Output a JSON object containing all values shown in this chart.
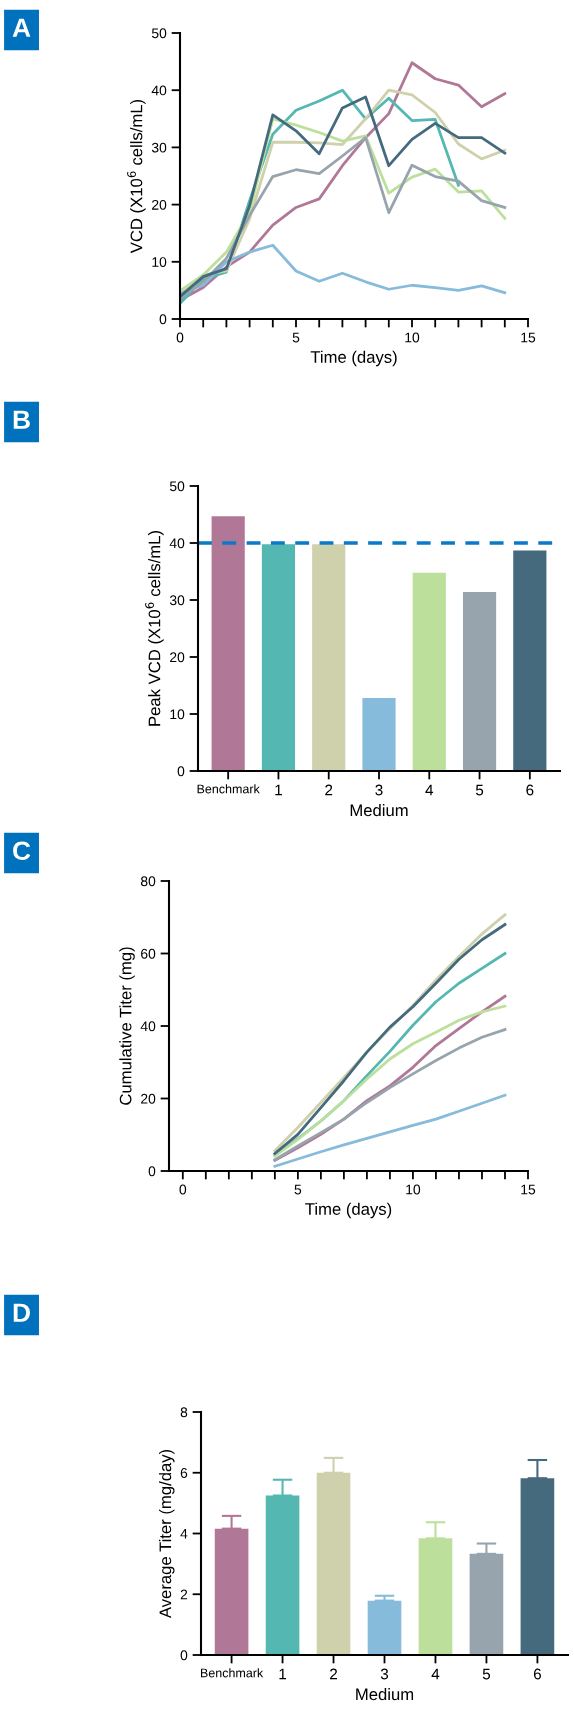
{
  "chart_data": [
    {
      "type": "line",
      "annotations": [
        "A"
      ],
      "xlabel": "Time (days)",
      "ylabel": "VCD (X10$^{6}$ cells/mL)",
      "x": [
        0,
        1,
        2,
        3,
        4,
        5,
        6,
        7,
        8,
        9,
        10,
        11,
        12,
        13,
        14
      ],
      "xlim": [
        0,
        15
      ],
      "ylim": [
        0,
        50
      ],
      "yticks": [
        0,
        10,
        20,
        30,
        40,
        50
      ],
      "xticks": [
        0,
        {
          "value": 1,
          "label": null
        },
        {
          "value": 2,
          "label": null
        },
        {
          "value": 3,
          "label": null
        },
        {
          "value": 4,
          "label": null
        },
        5,
        {
          "value": 6,
          "label": null
        },
        {
          "value": 7,
          "label": null
        },
        {
          "value": 8,
          "label": null
        },
        {
          "value": 9,
          "label": null
        },
        10,
        {
          "value": 11,
          "label": null
        },
        {
          "value": 12,
          "label": null
        },
        {
          "value": 13,
          "label": null
        },
        {
          "value": 14,
          "label": null
        },
        15
      ],
      "grid": false,
      "legend": false,
      "series": [
        {
          "color": "#b07896",
          "values": [
            3.3,
            5.5,
            9.1,
            11.7,
            16.4,
            19.5,
            21,
            26.8,
            31.7,
            35.9,
            44.8,
            42,
            40.9,
            37.1,
            39.4
          ]
        },
        {
          "color": "#55b7b2",
          "values": [
            2.7,
            7,
            8.2,
            20.7,
            32.3,
            36.5,
            38.1,
            40,
            35,
            38.6,
            34.7,
            34.9,
            23.4,
            null,
            null
          ]
        },
        {
          "color": "#cfd0ac",
          "values": [
            4.2,
            7.7,
            8.4,
            17.5,
            30.9,
            30.9,
            30.8,
            30.5,
            35,
            40,
            39.2,
            36.1,
            30.6,
            28,
            29.5
          ]
        },
        {
          "color": "#86bbdb",
          "values": [
            4.5,
            5.9,
            10,
            11.7,
            12.9,
            8.4,
            6.6,
            8,
            6.5,
            5.2,
            5.9,
            5.5,
            5,
            5.8,
            4.6
          ]
        },
        {
          "color": "#bce09c",
          "values": [
            4.9,
            7.7,
            11.7,
            18.7,
            35,
            33.9,
            32.6,
            31.1,
            32,
            22,
            24.8,
            26.2,
            22.2,
            22.4,
            17.6
          ]
        },
        {
          "color": "#97a4ad",
          "values": [
            3.6,
            6.5,
            10.6,
            18.1,
            24.9,
            26.1,
            25.4,
            28.5,
            31.7,
            18.6,
            26.9,
            24.9,
            24.1,
            20.7,
            19.5
          ]
        },
        {
          "color": "#456a7e",
          "values": [
            3.9,
            7.4,
            8.8,
            19.8,
            35.7,
            32.9,
            28.9,
            36.9,
            38.8,
            26.8,
            31.4,
            34.2,
            31.7,
            31.7,
            29
          ]
        }
      ]
    },
    {
      "type": "bar",
      "annotations": [
        "B"
      ],
      "xlabel": "Medium",
      "ylabel": "Peak VCD (X10$^{6}$ cells/mL)",
      "categories": [
        "Benchmark",
        "1",
        "2",
        "3",
        "4",
        "5",
        "6"
      ],
      "values": [
        44.7,
        39.8,
        39.8,
        12.8,
        34.8,
        31.4,
        38.7
      ],
      "colors": [
        "#b07896",
        "#55b7b2",
        "#cfd0ac",
        "#86bbdb",
        "#bce09c",
        "#97a4ad",
        "#456a7e"
      ],
      "ylim": [
        0,
        50
      ],
      "yticks": [
        0,
        10,
        20,
        30,
        40,
        50
      ],
      "grid": false,
      "legend": false,
      "ref_lines": [
        {
          "axis": "y",
          "value": 40,
          "color": "#0a7ac8",
          "line_style": "dashed"
        }
      ]
    },
    {
      "type": "line",
      "annotations": [
        "C"
      ],
      "xlabel": "Time (days)",
      "ylabel": "Cumulative Titer (mg)",
      "x": [
        4,
        5,
        6,
        7,
        8,
        9,
        10,
        11,
        12,
        13,
        14
      ],
      "xlim": [
        -0.6,
        15
      ],
      "ylim": [
        0,
        80
      ],
      "yticks": [
        0,
        20,
        40,
        60,
        80
      ],
      "xticks": [
        0,
        {
          "value": 1,
          "label": null
        },
        {
          "value": 2,
          "label": null
        },
        {
          "value": 3,
          "label": null
        },
        {
          "value": 4,
          "label": null
        },
        5,
        {
          "value": 6,
          "label": null
        },
        {
          "value": 7,
          "label": null
        },
        {
          "value": 8,
          "label": null
        },
        {
          "value": 9,
          "label": null
        },
        10,
        {
          "value": 11,
          "label": null
        },
        {
          "value": 12,
          "label": null
        },
        {
          "value": 13,
          "label": null
        },
        {
          "value": 14,
          "label": null
        },
        15
      ],
      "grid": false,
      "legend": false,
      "series": [
        {
          "color": "#b07896",
          "values": [
            2.9,
            6.4,
            10.1,
            14.3,
            19.4,
            23.5,
            28.6,
            34.6,
            39.3,
            43.9,
            48.2
          ]
        },
        {
          "color": "#55b7b2",
          "values": [
            4.3,
            8.9,
            13.8,
            19.4,
            26.3,
            33,
            40.2,
            46.7,
            51.8,
            55.9,
            60
          ]
        },
        {
          "color": "#cfd0ac",
          "values": [
            5.6,
            12,
            18.9,
            25.8,
            32.8,
            39.3,
            45.7,
            52.7,
            59.2,
            65.4,
            70.7
          ]
        },
        {
          "color": "#86bbdb",
          "values": [
            1.3,
            3.3,
            5.3,
            7.2,
            9,
            10.8,
            12.6,
            14.3,
            16.5,
            18.7,
            20.9
          ]
        },
        {
          "color": "#bce09c",
          "values": [
            4.1,
            8.7,
            13.8,
            19.4,
            25.4,
            30.9,
            35.1,
            38.3,
            41.6,
            43.9,
            45.5
          ]
        },
        {
          "color": "#97a4ad",
          "values": [
            3.1,
            6.9,
            10.6,
            14.3,
            18.9,
            23,
            26.8,
            30.5,
            33.9,
            36.9,
            39
          ]
        },
        {
          "color": "#456a7e",
          "values": [
            4.8,
            10.1,
            17.5,
            24.9,
            32.8,
            39.7,
            45.3,
            51.8,
            58.4,
            63.8,
            68
          ]
        }
      ]
    },
    {
      "type": "bar",
      "annotations": [
        "D"
      ],
      "xlabel": "Medium",
      "ylabel": "Average Titer (mg/day)",
      "categories": [
        "Benchmark",
        "1",
        "2",
        "3",
        "4",
        "5",
        "6"
      ],
      "values": [
        4.16,
        5.25,
        6.0,
        1.79,
        3.84,
        3.33,
        5.82
      ],
      "colors": [
        "#b07896",
        "#55b7b2",
        "#cfd0ac",
        "#86bbdb",
        "#bce09c",
        "#97a4ad",
        "#456a7e"
      ],
      "errors": [
        0.42,
        0.52,
        0.49,
        0.16,
        0.53,
        0.34,
        0.6
      ],
      "ylim": [
        0,
        8
      ],
      "yticks": [
        0,
        2,
        4,
        6,
        8
      ],
      "grid": false,
      "legend": false
    }
  ]
}
